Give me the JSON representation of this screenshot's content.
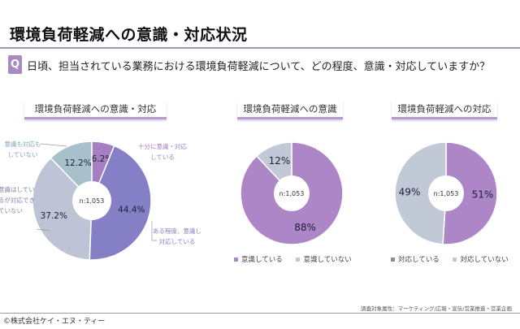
{
  "header": {
    "title": "環境負荷軽減への意識・対応状況",
    "q_badge": "Q",
    "question": "日頃、担当されている業務における環境負荷軽減について、どの程度、意識・対応していますか？"
  },
  "footer": {
    "note": "調査対象属性：マーケティング/広報・宣伝/営業推進・営業企画",
    "copyright": "©株式会社ケイ・エヌ・ティー"
  },
  "chart_data": [
    {
      "type": "pie",
      "title": "環境負荷軽減への意識・対応",
      "center_label": "n:1,053",
      "slices": [
        {
          "label": "十分に意識・対応している",
          "value": 6.2,
          "display": "6.2%",
          "color": "#a57fc2"
        },
        {
          "label": "ある程度、意識し対応している",
          "value": 44.4,
          "display": "44.4%",
          "color": "#8580c6"
        },
        {
          "label": "意識はしているが対応できていない",
          "value": 37.2,
          "display": "37.2%",
          "color": "#bfc3d6"
        },
        {
          "label": "意識も対応もしていない",
          "value": 12.2,
          "display": "12.2%",
          "color": "#a7c0cc"
        }
      ],
      "callouts": [
        {
          "line1": "十分に意識・対応",
          "line2": "している",
          "color": "#a57fc2"
        },
        {
          "line1": "ある程度、意識し",
          "line2": "対応している",
          "color": "#8580c6"
        },
        {
          "line1": "意識はしてい",
          "line2": "るが対応でき",
          "line3": "ていない",
          "color": "#7f86a8"
        },
        {
          "line1": "意識も対応も",
          "line2": "していない",
          "color": "#7fa3b8"
        }
      ]
    },
    {
      "type": "pie",
      "title": "環境負荷軽減への意識",
      "center_label": "n:1,053",
      "slices": [
        {
          "label": "意識している",
          "value": 88,
          "display": "88%",
          "color": "#ac86c6"
        },
        {
          "label": "意識していない",
          "value": 12,
          "display": "12%",
          "color": "#c2c9d6"
        }
      ],
      "legend": [
        "意識している",
        "意識していない"
      ]
    },
    {
      "type": "pie",
      "title": "環境負荷軽減への対応",
      "center_label": "n:1,053",
      "slices": [
        {
          "label": "対応している",
          "value": 51,
          "display": "51%",
          "color": "#ac86c6"
        },
        {
          "label": "対応していない",
          "value": 49,
          "display": "49%",
          "color": "#c2c9d6"
        }
      ],
      "legend": [
        "対応している",
        "対応していない"
      ]
    }
  ]
}
